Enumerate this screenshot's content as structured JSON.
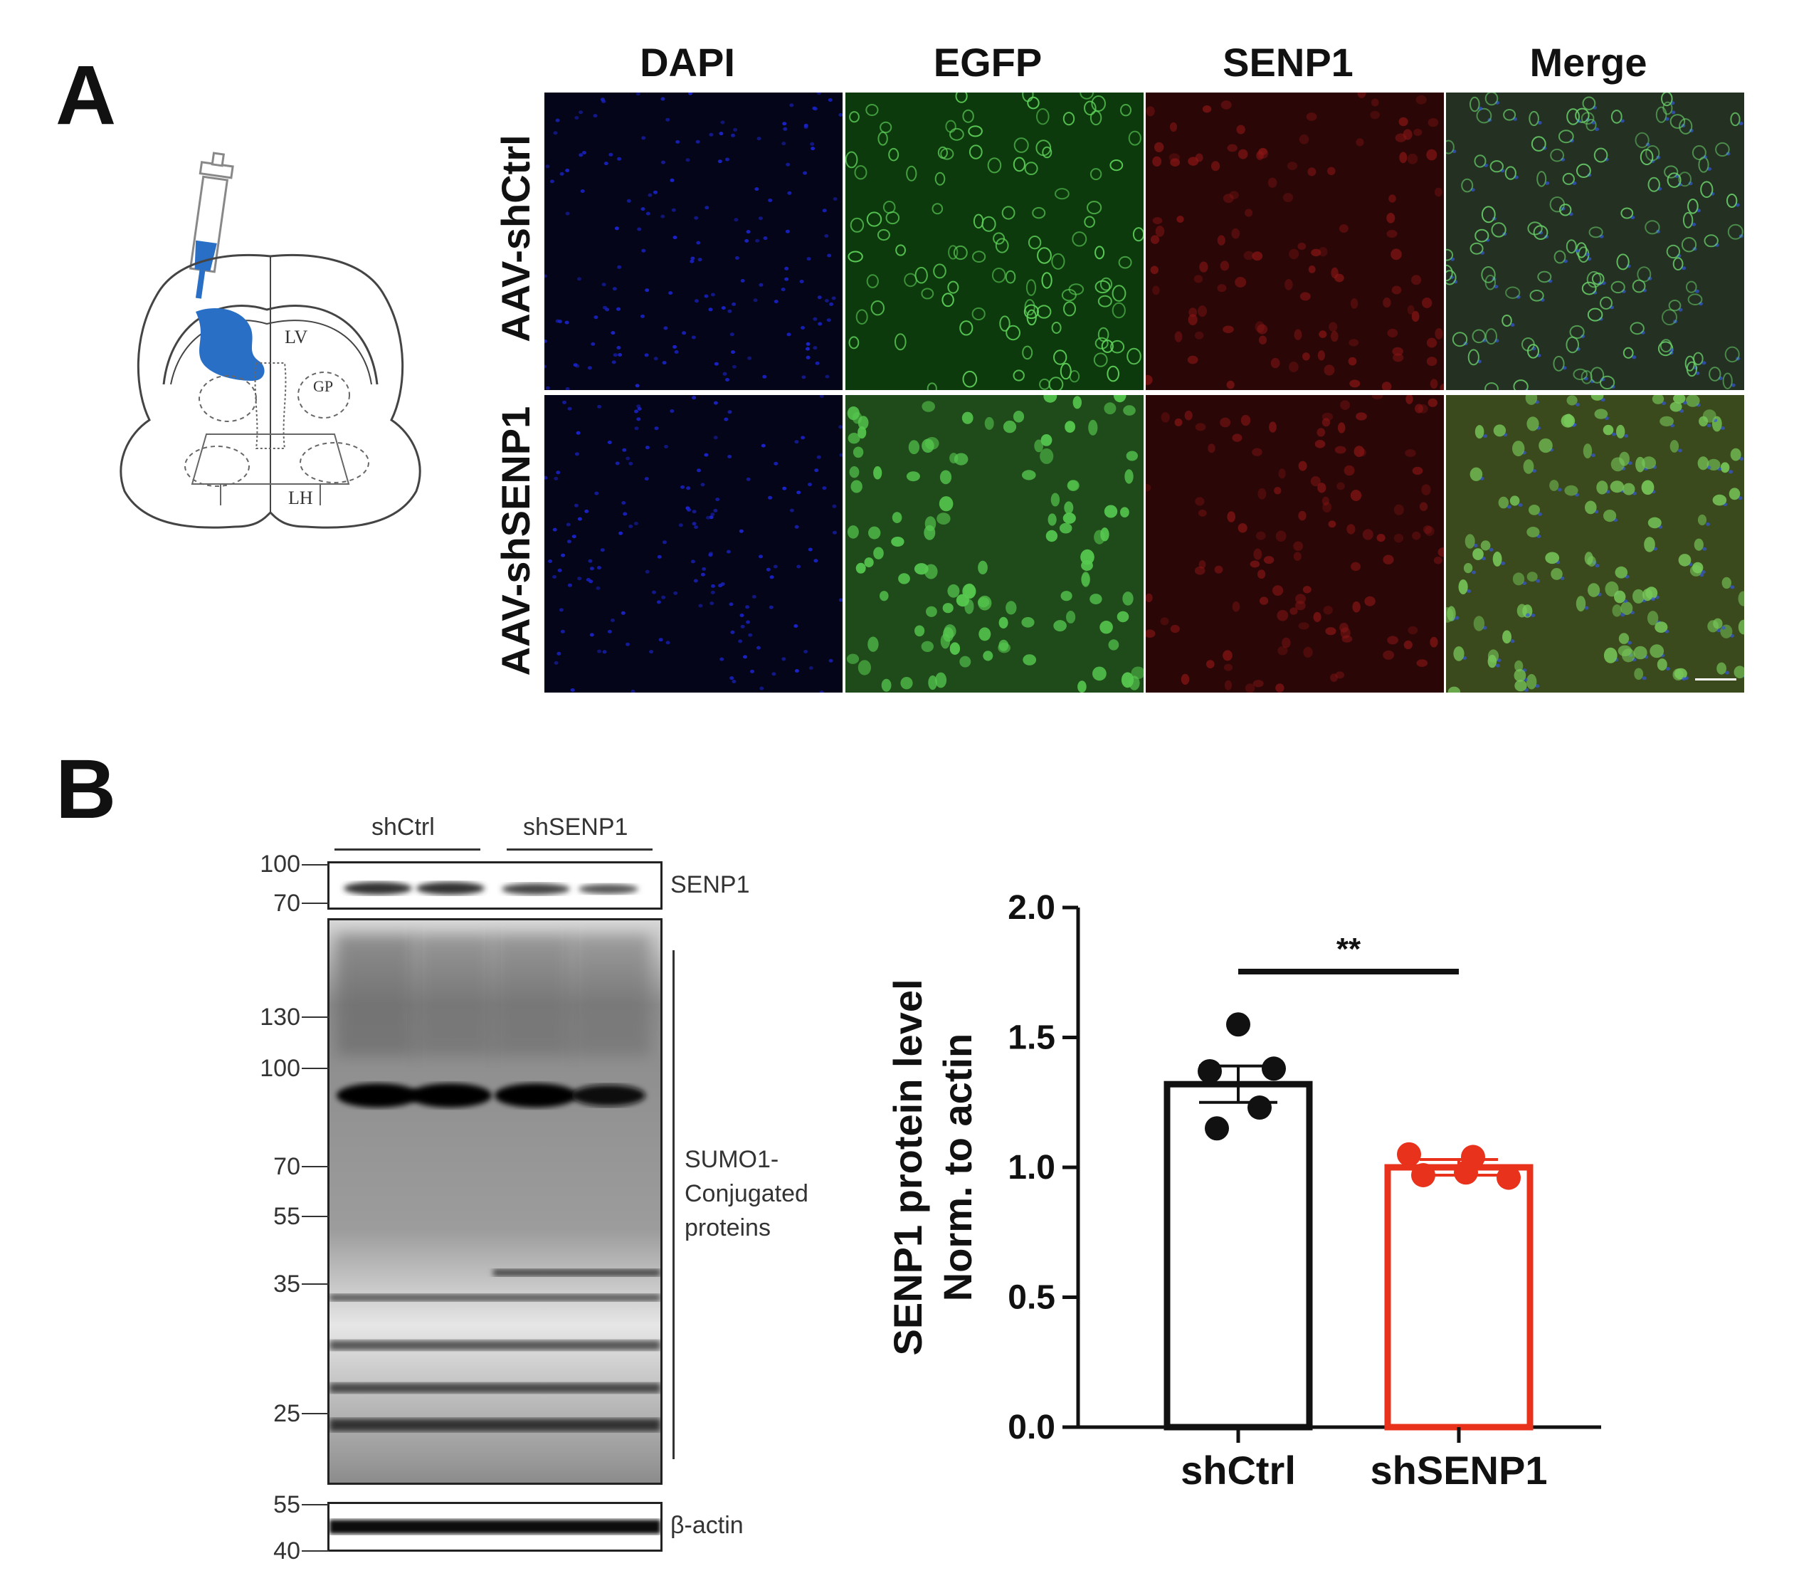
{
  "panels": {
    "a": {
      "letter": "A",
      "columns": [
        "DAPI",
        "EGFP",
        "SENP1",
        "Merge"
      ],
      "rows": [
        "AAV-shCtrl",
        "AAV-shSENP1"
      ],
      "brain_labels": [
        "LV",
        "GP",
        "LH"
      ],
      "colors": {
        "dapi": "#1a23c8",
        "egfp": "#2fb42c",
        "senp1": "#8e1616",
        "injection": "#2a6fc6"
      }
    },
    "b": {
      "letter": "B",
      "groups": [
        "shCtrl",
        "shSENP1"
      ],
      "blots": [
        {
          "label": "SENP1",
          "markers": [
            "100",
            "70"
          ]
        },
        {
          "label": "SUMO1-\nConjugated\nproteins",
          "markers": [
            "130",
            "100",
            "70",
            "55",
            "35",
            "25"
          ]
        },
        {
          "label": "β-actin",
          "markers": [
            "55",
            "40"
          ]
        }
      ]
    }
  },
  "chart_data": {
    "type": "bar",
    "categories": [
      "shCtrl",
      "shSENP1"
    ],
    "values": [
      1.32,
      1.0
    ],
    "errors": [
      0.07,
      0.03
    ],
    "points": [
      [
        1.55,
        1.38,
        1.37,
        1.23,
        1.15
      ],
      [
        1.05,
        1.04,
        0.97,
        0.96,
        0.98
      ]
    ],
    "colors": [
      "#111111",
      "#e8321b"
    ],
    "ylabel": "SENP1 protein level\nNorm. to actin",
    "ylim": [
      0,
      2.0
    ],
    "yticks": [
      "0.0",
      "0.5",
      "1.0",
      "1.5",
      "2.0"
    ],
    "significance": "**"
  }
}
